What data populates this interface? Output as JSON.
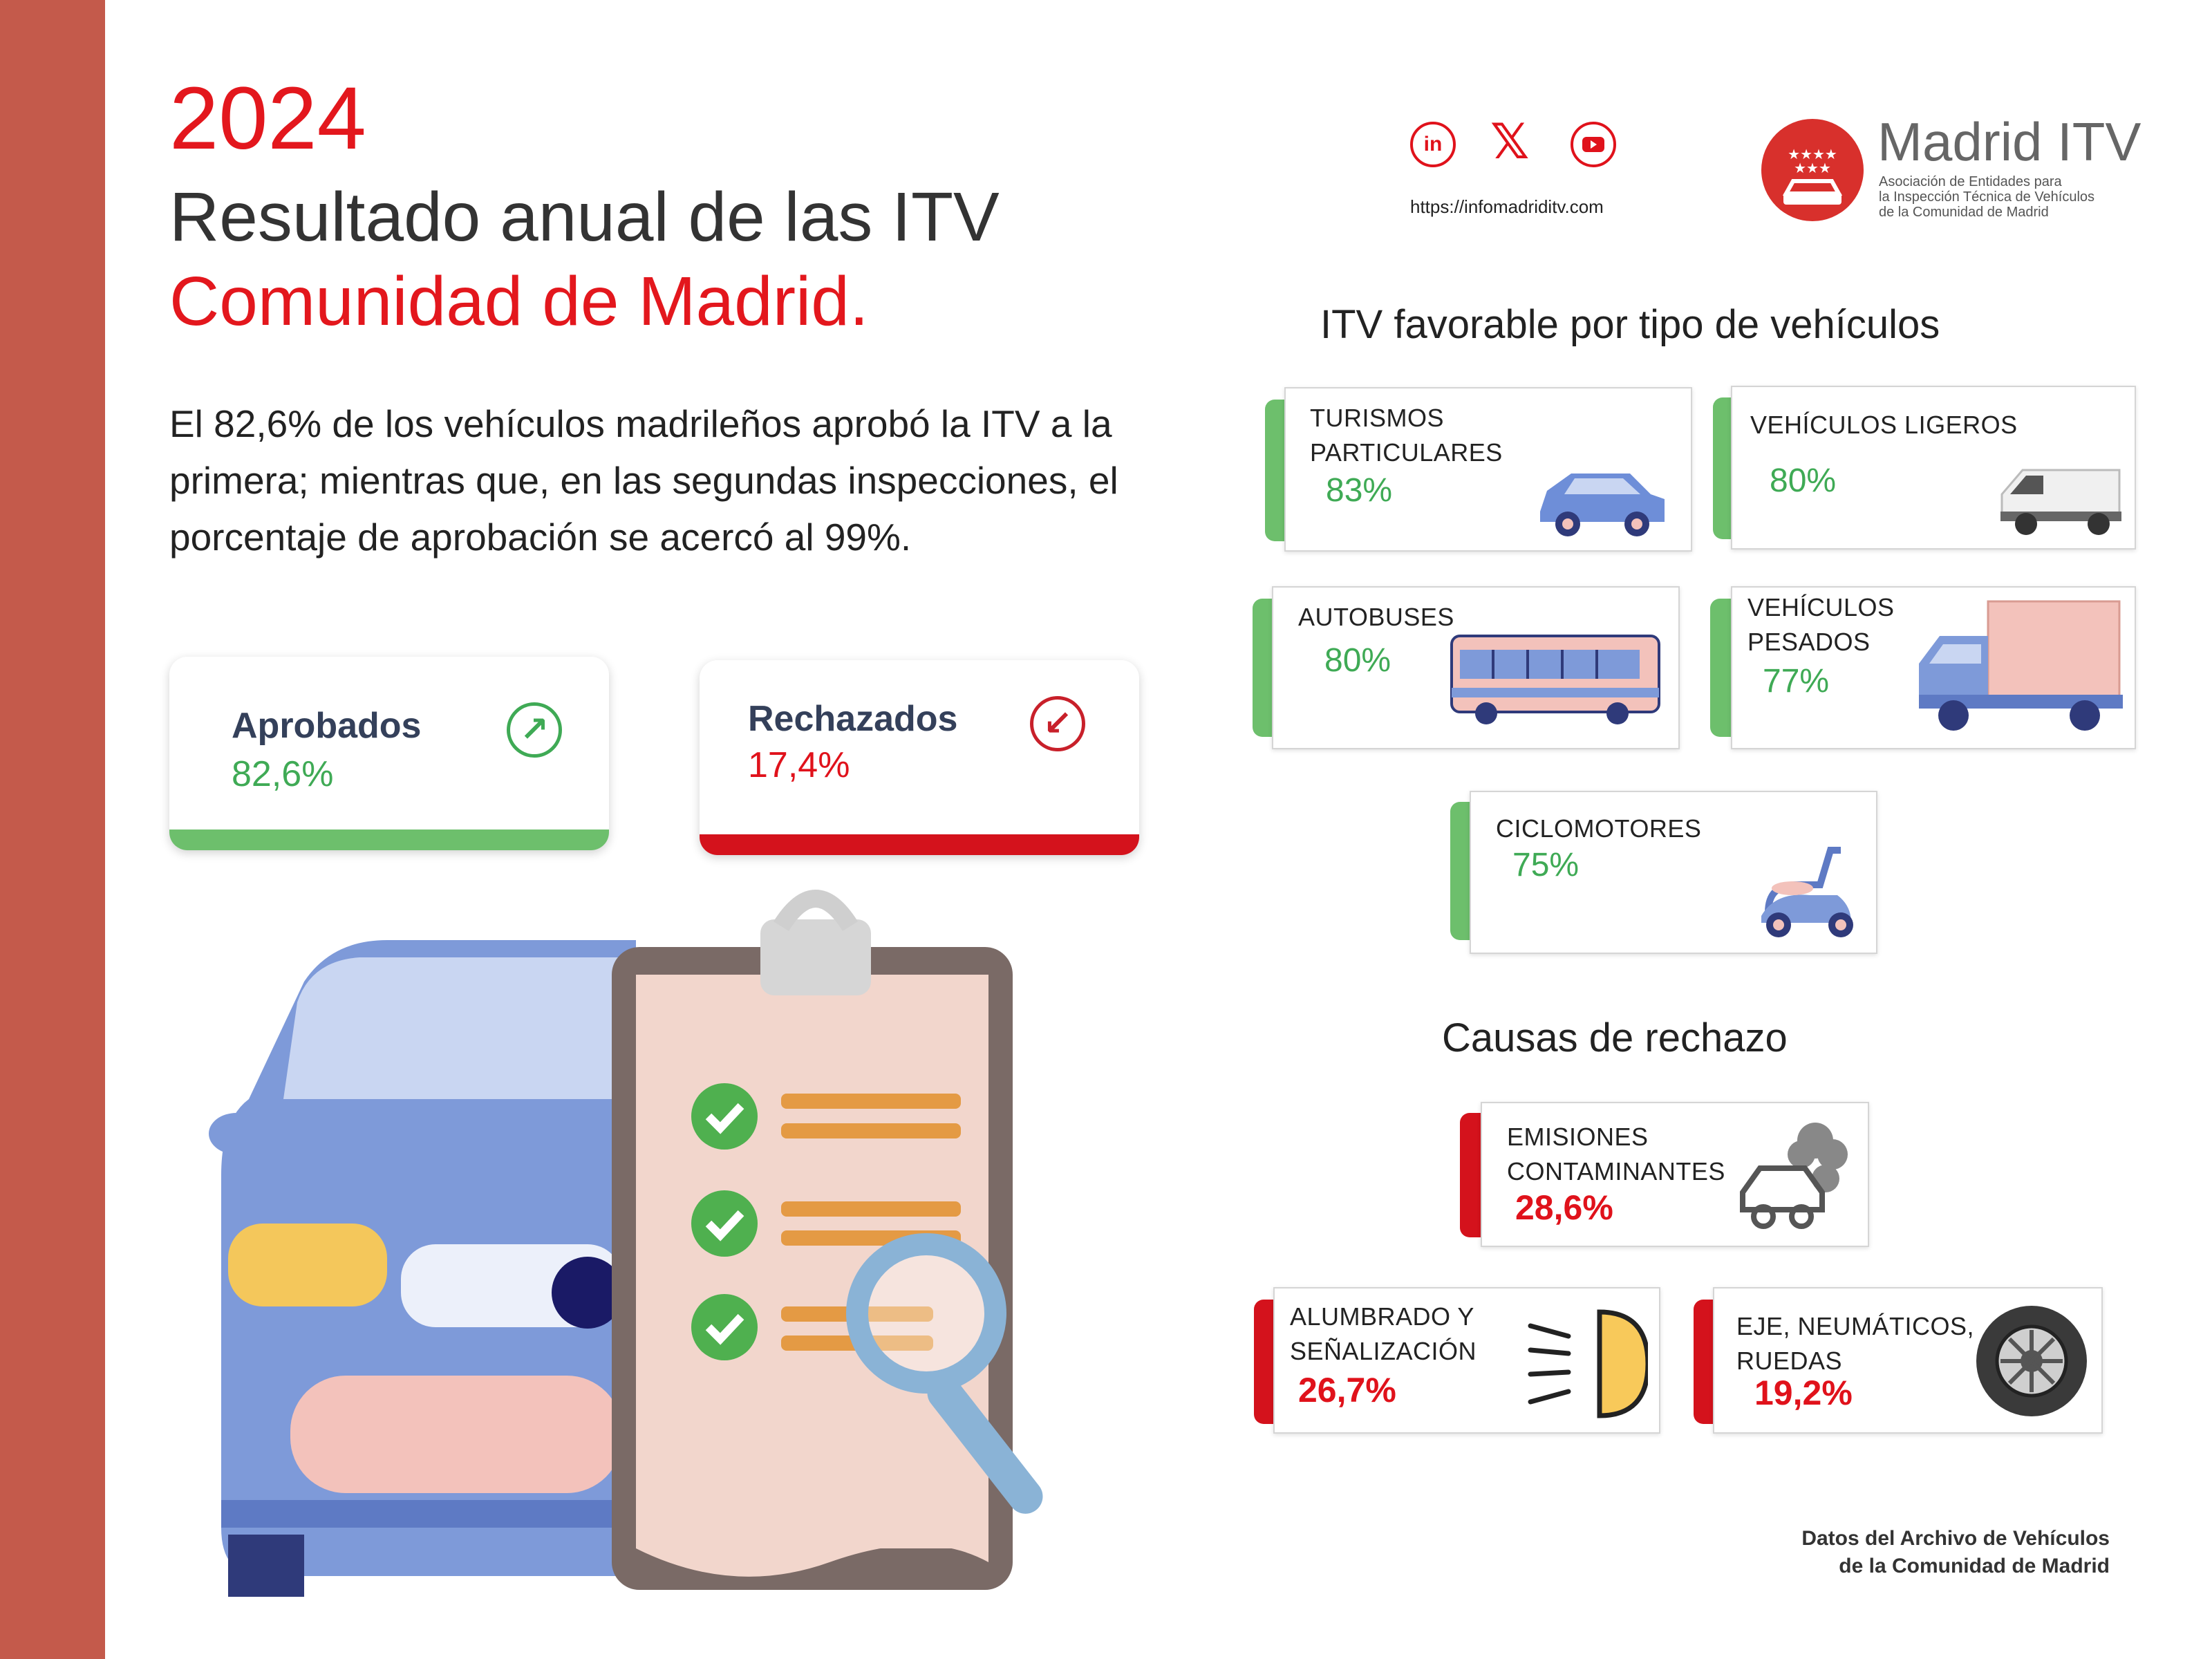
{
  "header": {
    "year": "2024",
    "title_line1": "Resultado anual de las ITV",
    "title_line2": "Comunidad de Madrid."
  },
  "intro": "El 82,6% de los vehículos madrileños aprobó la ITV a la primera; mientras que, en las segundas inspecciones, el porcentaje de aprobación se acercó al 99%.",
  "stats": {
    "approved": {
      "label": "Aprobados",
      "value": "82,6%",
      "color": "#3faa55"
    },
    "rejected": {
      "label": "Rechazados",
      "value": "17,4%",
      "color": "#e0121b"
    }
  },
  "social": {
    "icons": [
      "linkedin-icon",
      "x-icon",
      "youtube-icon"
    ],
    "url": "https://infomadriditv.com"
  },
  "logo": {
    "title": "Madrid ITV",
    "subtitle_line1": "Asociación de Entidades para",
    "subtitle_line2": "la Inspección Técnica de Vehículos",
    "subtitle_line3": "de la Comunidad de Madrid"
  },
  "favorable": {
    "title": "ITV favorable por tipo de vehículos",
    "items": [
      {
        "label_line1": "TURISMOS",
        "label_line2": "PARTICULARES",
        "value": "83%",
        "icon": "car-icon"
      },
      {
        "label_line1": "VEHÍCULOS LIGEROS",
        "value": "80%",
        "icon": "van-icon"
      },
      {
        "label_line1": "AUTOBUSES",
        "value": "80%",
        "icon": "bus-icon"
      },
      {
        "label_line1": "VEHÍCULOS",
        "label_line2": "PESADOS",
        "value": "77%",
        "icon": "truck-icon"
      },
      {
        "label_line1": "CICLOMOTORES",
        "value": "75%",
        "icon": "scooter-icon"
      }
    ]
  },
  "rejection": {
    "title": "Causas de rechazo",
    "items": [
      {
        "label_line1": "EMISIONES",
        "label_line2": "CONTAMINANTES",
        "value": "28,6%",
        "icon": "emissions-icon"
      },
      {
        "label_line1": "ALUMBRADO Y",
        "label_line2": "SEÑALIZACIÓN",
        "value": "26,7%",
        "icon": "headlight-icon"
      },
      {
        "label_line1": "EJE, NEUMÁTICOS,",
        "label_line2": "RUEDAS",
        "value": "19,2%",
        "icon": "tire-icon"
      }
    ]
  },
  "source": {
    "line1": "Datos del Archivo de Vehículos",
    "line2": "de la Comunidad de Madrid"
  },
  "colors": {
    "accent_red": "#e3171d",
    "accent_green": "#3faa55",
    "sidebar": "#c45a4b"
  }
}
